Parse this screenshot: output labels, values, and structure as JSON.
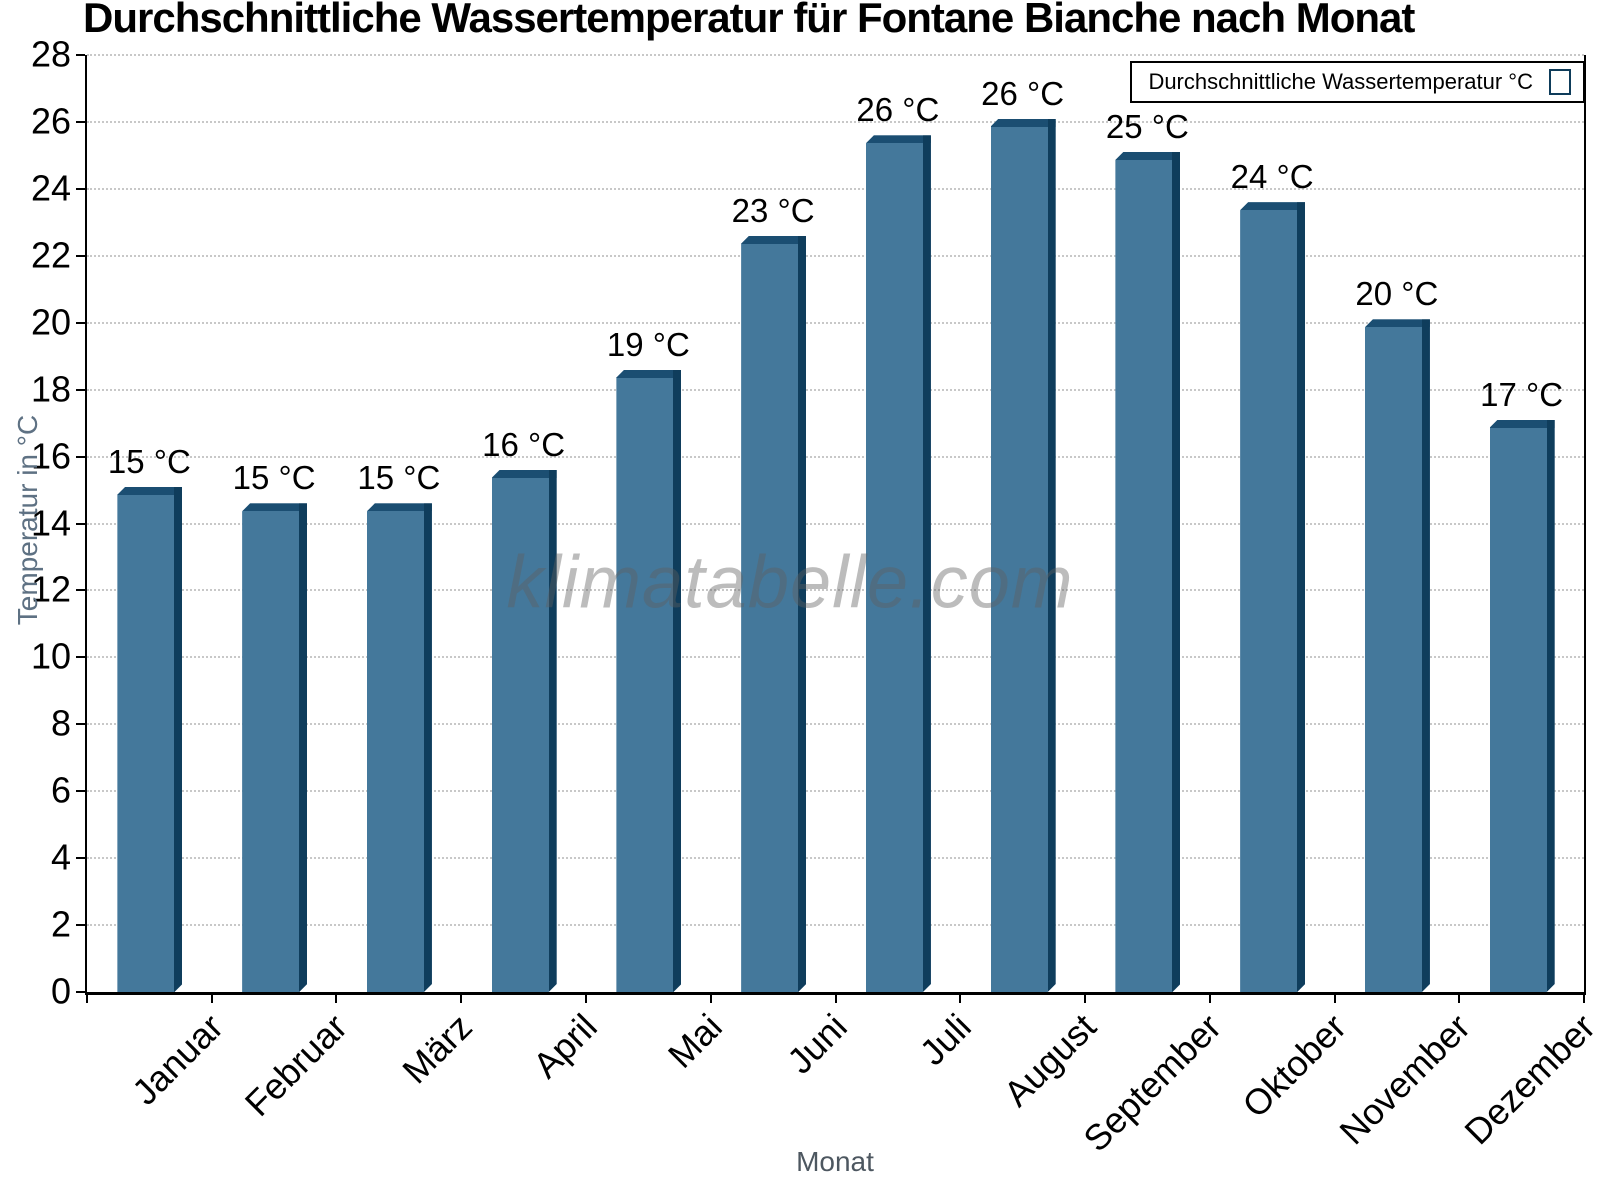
{
  "chart_data": {
    "type": "bar",
    "title": "Durchschnittliche Wassertemperatur für Fontane Bianche nach Monat",
    "xlabel": "Monat",
    "ylabel": "Temperatur in °C",
    "categories": [
      "Januar",
      "Februar",
      "März",
      "April",
      "Mai",
      "Juni",
      "Juli",
      "August",
      "September",
      "Oktober",
      "November",
      "Dezember"
    ],
    "values": [
      15.1,
      14.6,
      14.6,
      15.6,
      18.6,
      22.6,
      25.6,
      26.1,
      25.1,
      23.6,
      20.1,
      17.1
    ],
    "value_labels": [
      "15 °C",
      "15 °C",
      "15 °C",
      "16 °C",
      "19 °C",
      "23 °C",
      "26 °C",
      "26 °C",
      "25 °C",
      "24 °C",
      "20 °C",
      "17 °C"
    ],
    "yticks": [
      0,
      2,
      4,
      6,
      8,
      10,
      12,
      14,
      16,
      18,
      20,
      22,
      24,
      26,
      28
    ],
    "ylim": [
      0,
      28
    ],
    "grid": "horizontal dotted",
    "legend": {
      "label": "Durchschnittliche Wassertemperatur °C",
      "position": "top-right"
    },
    "watermark": "klimatabelle.com",
    "colors": {
      "bar_face": "#44789b",
      "bar_top": "#1b4e72",
      "bar_side": "#0f3d5c",
      "grid_line": "#c8c8c8",
      "axis": "#000000",
      "y_axis_title": "#5e7183",
      "x_axis_title": "#4d5760",
      "tick_label": "#000000",
      "watermark": "#5f5f5f"
    }
  }
}
